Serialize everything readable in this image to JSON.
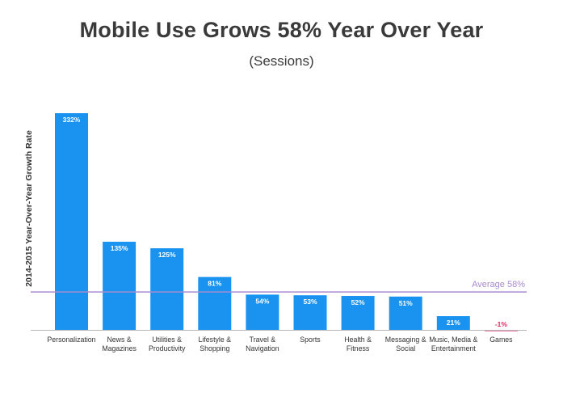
{
  "chart_data": {
    "type": "bar",
    "title": "Mobile Use Grows 58% Year Over Year",
    "subtitle": "(Sessions)",
    "ylabel": "2014-2015 Year-Over-Year Growth Rate",
    "categories": [
      [
        "Personalization"
      ],
      [
        "News &",
        "Magazines"
      ],
      [
        "Utilities &",
        "Productivity"
      ],
      [
        "Lifestyle &",
        "Shopping"
      ],
      [
        "Travel &",
        "Navigation"
      ],
      [
        "Sports"
      ],
      [
        "Health &",
        "Fitness"
      ],
      [
        "Messaging &",
        "Social"
      ],
      [
        "Music, Media &",
        "Entertainment"
      ],
      [
        "Games"
      ]
    ],
    "values": [
      332,
      135,
      125,
      81,
      54,
      53,
      52,
      51,
      21,
      -1
    ],
    "value_labels": [
      "332%",
      "135%",
      "125%",
      "81%",
      "54%",
      "53%",
      "52%",
      "51%",
      "21%",
      "-1%"
    ],
    "reference_line": {
      "label": "Average 58%",
      "value": 58
    },
    "ylim": [
      -2,
      332
    ],
    "grid": false,
    "colors": {
      "bar": "#1a93f0",
      "negative_bar": "#e0245e",
      "average_line": "#a88bd0",
      "text": "#3a3a3a"
    }
  }
}
